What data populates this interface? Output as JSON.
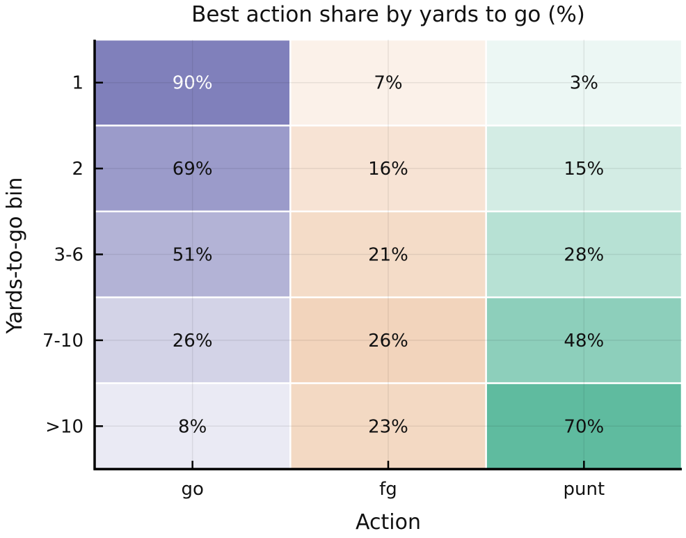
{
  "chart_data": {
    "type": "heatmap",
    "title": "Best action share by yards to go (%)",
    "xlabel": "Action",
    "ylabel": "Yards-to-go bin",
    "x_categories": [
      "go",
      "fg",
      "punt"
    ],
    "y_categories": [
      "1",
      "2",
      "3-6",
      "7-10",
      ">10"
    ],
    "values": [
      [
        90,
        7,
        3
      ],
      [
        69,
        16,
        15
      ],
      [
        51,
        21,
        28
      ],
      [
        26,
        26,
        48
      ],
      [
        8,
        23,
        70
      ]
    ],
    "cell_labels": [
      [
        "90%",
        "7%",
        "3%"
      ],
      [
        "69%",
        "16%",
        "15%"
      ],
      [
        "51%",
        "21%",
        "28%"
      ],
      [
        "26%",
        "26%",
        "48%"
      ],
      [
        "8%",
        "23%",
        "70%"
      ]
    ],
    "column_colors": {
      "go": "#8080bb",
      "fg": "#f2d4bc",
      "punt": "#5fbb9f"
    },
    "grid": true
  }
}
